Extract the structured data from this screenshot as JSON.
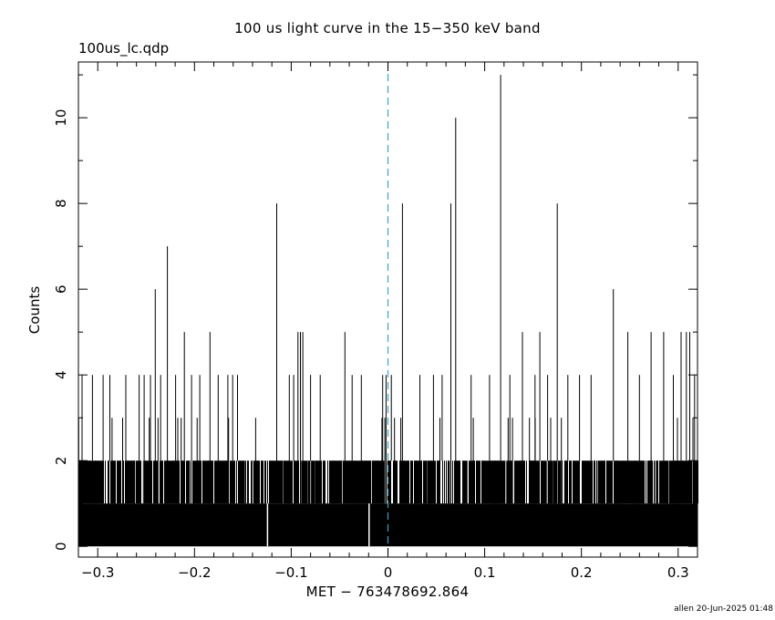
{
  "header": {
    "title": "100 us light curve in the 15−350 keV band",
    "file_label": "100us_lc.qdp"
  },
  "footer": {
    "stamp": "allen 20-Jun-2025 01:48"
  },
  "chart_data": {
    "type": "histogram",
    "title": "100 us light curve in the 15−350 keV band",
    "xlabel": "MET − 763478692.864",
    "ylabel": "Counts",
    "xlim": [
      -0.32,
      0.32
    ],
    "ylim": [
      -0.25,
      11.3
    ],
    "xticks": [
      -0.3,
      -0.2,
      -0.1,
      0,
      0.1,
      0.2,
      0.3
    ],
    "xtick_labels": [
      "−0.3",
      "−0.2",
      "−0.1",
      "0",
      "0.1",
      "0.2",
      "0.3"
    ],
    "yticks": [
      0,
      2,
      4,
      6,
      8,
      10
    ],
    "ytick_labels": [
      "0",
      "2",
      "4",
      "6",
      "8",
      "10"
    ],
    "bin_width": 0.0001,
    "baseline_counts": 1,
    "trigger_line": {
      "x": 0,
      "color": "#3aa0c8",
      "style": "dashed"
    },
    "line_color": "#000000",
    "gaps": [
      -0.1245,
      -0.0195
    ],
    "spikes": [
      {
        "x": -0.3162,
        "y": 4
      },
      {
        "x": -0.3055,
        "y": 4
      },
      {
        "x": -0.2945,
        "y": 4
      },
      {
        "x": -0.2875,
        "y": 4
      },
      {
        "x": -0.271,
        "y": 4
      },
      {
        "x": -0.2572,
        "y": 4
      },
      {
        "x": -0.252,
        "y": 4
      },
      {
        "x": -0.2455,
        "y": 4
      },
      {
        "x": -0.2405,
        "y": 6
      },
      {
        "x": -0.235,
        "y": 4
      },
      {
        "x": -0.228,
        "y": 7
      },
      {
        "x": -0.2195,
        "y": 4
      },
      {
        "x": -0.2105,
        "y": 5
      },
      {
        "x": -0.203,
        "y": 4
      },
      {
        "x": -0.1945,
        "y": 4
      },
      {
        "x": -0.184,
        "y": 5
      },
      {
        "x": -0.1755,
        "y": 4
      },
      {
        "x": -0.1655,
        "y": 4
      },
      {
        "x": -0.1605,
        "y": 4
      },
      {
        "x": -0.1555,
        "y": 4
      },
      {
        "x": -0.115,
        "y": 8
      },
      {
        "x": -0.102,
        "y": 4
      },
      {
        "x": -0.0975,
        "y": 4
      },
      {
        "x": -0.093,
        "y": 5
      },
      {
        "x": -0.0905,
        "y": 5
      },
      {
        "x": -0.088,
        "y": 5
      },
      {
        "x": -0.08,
        "y": 4
      },
      {
        "x": -0.07,
        "y": 4
      },
      {
        "x": -0.0445,
        "y": 5
      },
      {
        "x": -0.037,
        "y": 4
      },
      {
        "x": -0.0275,
        "y": 4
      },
      {
        "x": -0.0055,
        "y": 4
      },
      {
        "x": -0.002,
        "y": 4
      },
      {
        "x": 0.0035,
        "y": 4
      },
      {
        "x": 0.015,
        "y": 8
      },
      {
        "x": 0.033,
        "y": 4
      },
      {
        "x": 0.047,
        "y": 4
      },
      {
        "x": 0.056,
        "y": 4
      },
      {
        "x": 0.065,
        "y": 8
      },
      {
        "x": 0.07,
        "y": 10
      },
      {
        "x": 0.086,
        "y": 4
      },
      {
        "x": 0.105,
        "y": 4
      },
      {
        "x": 0.1165,
        "y": 11
      },
      {
        "x": 0.126,
        "y": 4
      },
      {
        "x": 0.139,
        "y": 5
      },
      {
        "x": 0.152,
        "y": 4
      },
      {
        "x": 0.157,
        "y": 5
      },
      {
        "x": 0.165,
        "y": 4
      },
      {
        "x": 0.175,
        "y": 8
      },
      {
        "x": 0.186,
        "y": 4
      },
      {
        "x": 0.198,
        "y": 4
      },
      {
        "x": 0.21,
        "y": 4
      },
      {
        "x": 0.233,
        "y": 6
      },
      {
        "x": 0.248,
        "y": 5
      },
      {
        "x": 0.26,
        "y": 4
      },
      {
        "x": 0.272,
        "y": 5
      },
      {
        "x": 0.285,
        "y": 5
      },
      {
        "x": 0.295,
        "y": 4
      },
      {
        "x": 0.303,
        "y": 5
      },
      {
        "x": 0.3085,
        "y": 5
      },
      {
        "x": 0.312,
        "y": 5
      },
      {
        "x": 0.317,
        "y": 4
      }
    ],
    "noise": {
      "threes_per_bin_fraction": 0.02,
      "twos_per_bin_fraction": 0.14,
      "ones_per_bin_fraction": 0.45,
      "seed": 1234
    }
  }
}
